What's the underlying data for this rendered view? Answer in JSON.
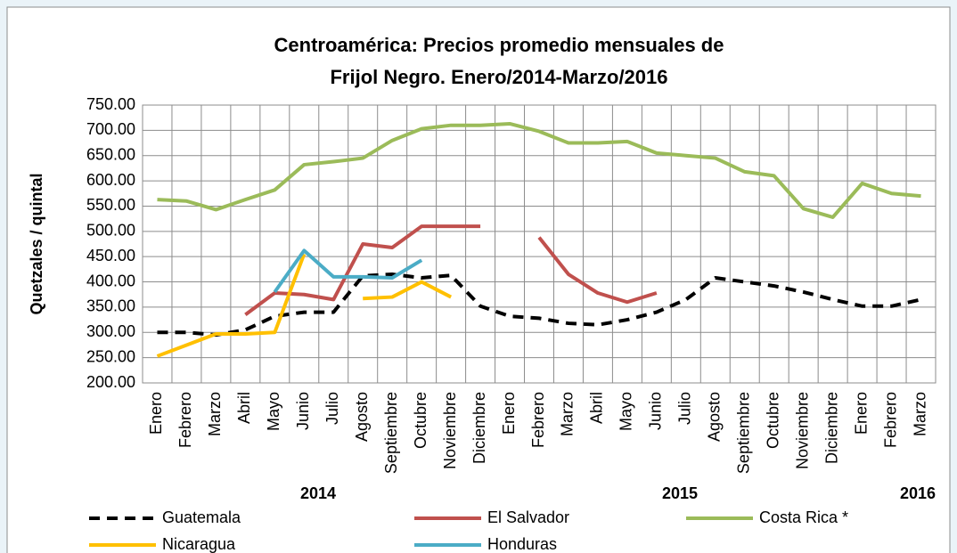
{
  "chart_data": {
    "type": "line",
    "title": [
      "Centroamérica: Precios promedio mensuales de",
      "Frijol Negro. Enero/2014-Marzo/2016"
    ],
    "y_label": "Quetzales / quintal",
    "categories": [
      "Enero",
      "Febrero",
      "Marzo",
      "Abril",
      "Mayo",
      "Junio",
      "Julio",
      "Agosto",
      "Septiembre",
      "Octubre",
      "Noviembre",
      "Diciembre",
      "Enero",
      "Febrero",
      "Marzo",
      "Abril",
      "Mayo",
      "Junio",
      "Julio",
      "Agosto",
      "Septiembre",
      "Octubre",
      "Noviembre",
      "Diciembre",
      "Enero",
      "Febrero",
      "Marzo"
    ],
    "year_labels": [
      "2014",
      "2015",
      "2016"
    ],
    "ylim": [
      200,
      750
    ],
    "yticks": [
      {
        "value": 200,
        "label": "200.00"
      },
      {
        "value": 250,
        "label": "250.00"
      },
      {
        "value": 300,
        "label": "300.00"
      },
      {
        "value": 350,
        "label": "350.00"
      },
      {
        "value": 400,
        "label": "400.00"
      },
      {
        "value": 450,
        "label": "450.00"
      },
      {
        "value": 500,
        "label": "500.00"
      },
      {
        "value": 550,
        "label": "550.00"
      },
      {
        "value": 600,
        "label": "600.00"
      },
      {
        "value": 650,
        "label": "650.00"
      },
      {
        "value": 700,
        "label": "700.00"
      },
      {
        "value": 750,
        "label": "750.00"
      }
    ],
    "grid": true,
    "legend": "bottom",
    "series": [
      {
        "name": "Guatemala",
        "color": "#000000",
        "dash": "dashed",
        "values": [
          300,
          300,
          295,
          305,
          332,
          340,
          340,
          412,
          415,
          408,
          413,
          352,
          332,
          328,
          318,
          315,
          325,
          340,
          365,
          408,
          400,
          392,
          380,
          365,
          352,
          352,
          365
        ]
      },
      {
        "name": "El Salvador",
        "color": "#c0504d",
        "values": [
          null,
          null,
          null,
          335,
          378,
          375,
          365,
          475,
          468,
          510,
          510,
          510,
          null,
          488,
          415,
          378,
          360,
          378,
          null,
          null,
          null,
          null,
          null,
          null,
          null,
          null,
          null
        ]
      },
      {
        "name": "Costa Rica *",
        "color": "#9bbb59",
        "values": [
          563,
          560,
          543,
          563,
          582,
          632,
          638,
          645,
          680,
          703,
          710,
          710,
          713,
          698,
          675,
          675,
          678,
          655,
          650,
          645,
          618,
          610,
          545,
          528,
          595,
          575,
          570
        ]
      },
      {
        "name": "Nicaragua",
        "color": "#ffc000",
        "values": [
          253,
          275,
          297,
          297,
          300,
          455,
          null,
          367,
          370,
          400,
          370,
          null,
          null,
          null,
          null,
          null,
          null,
          null,
          null,
          null,
          null,
          null,
          null,
          null,
          null,
          null,
          null
        ]
      },
      {
        "name": "Honduras",
        "color": "#4bacc6",
        "values": [
          null,
          null,
          null,
          null,
          380,
          462,
          410,
          410,
          408,
          443,
          null,
          null,
          null,
          null,
          null,
          null,
          null,
          null,
          null,
          null,
          null,
          null,
          null,
          null,
          null,
          null,
          null
        ]
      }
    ]
  }
}
